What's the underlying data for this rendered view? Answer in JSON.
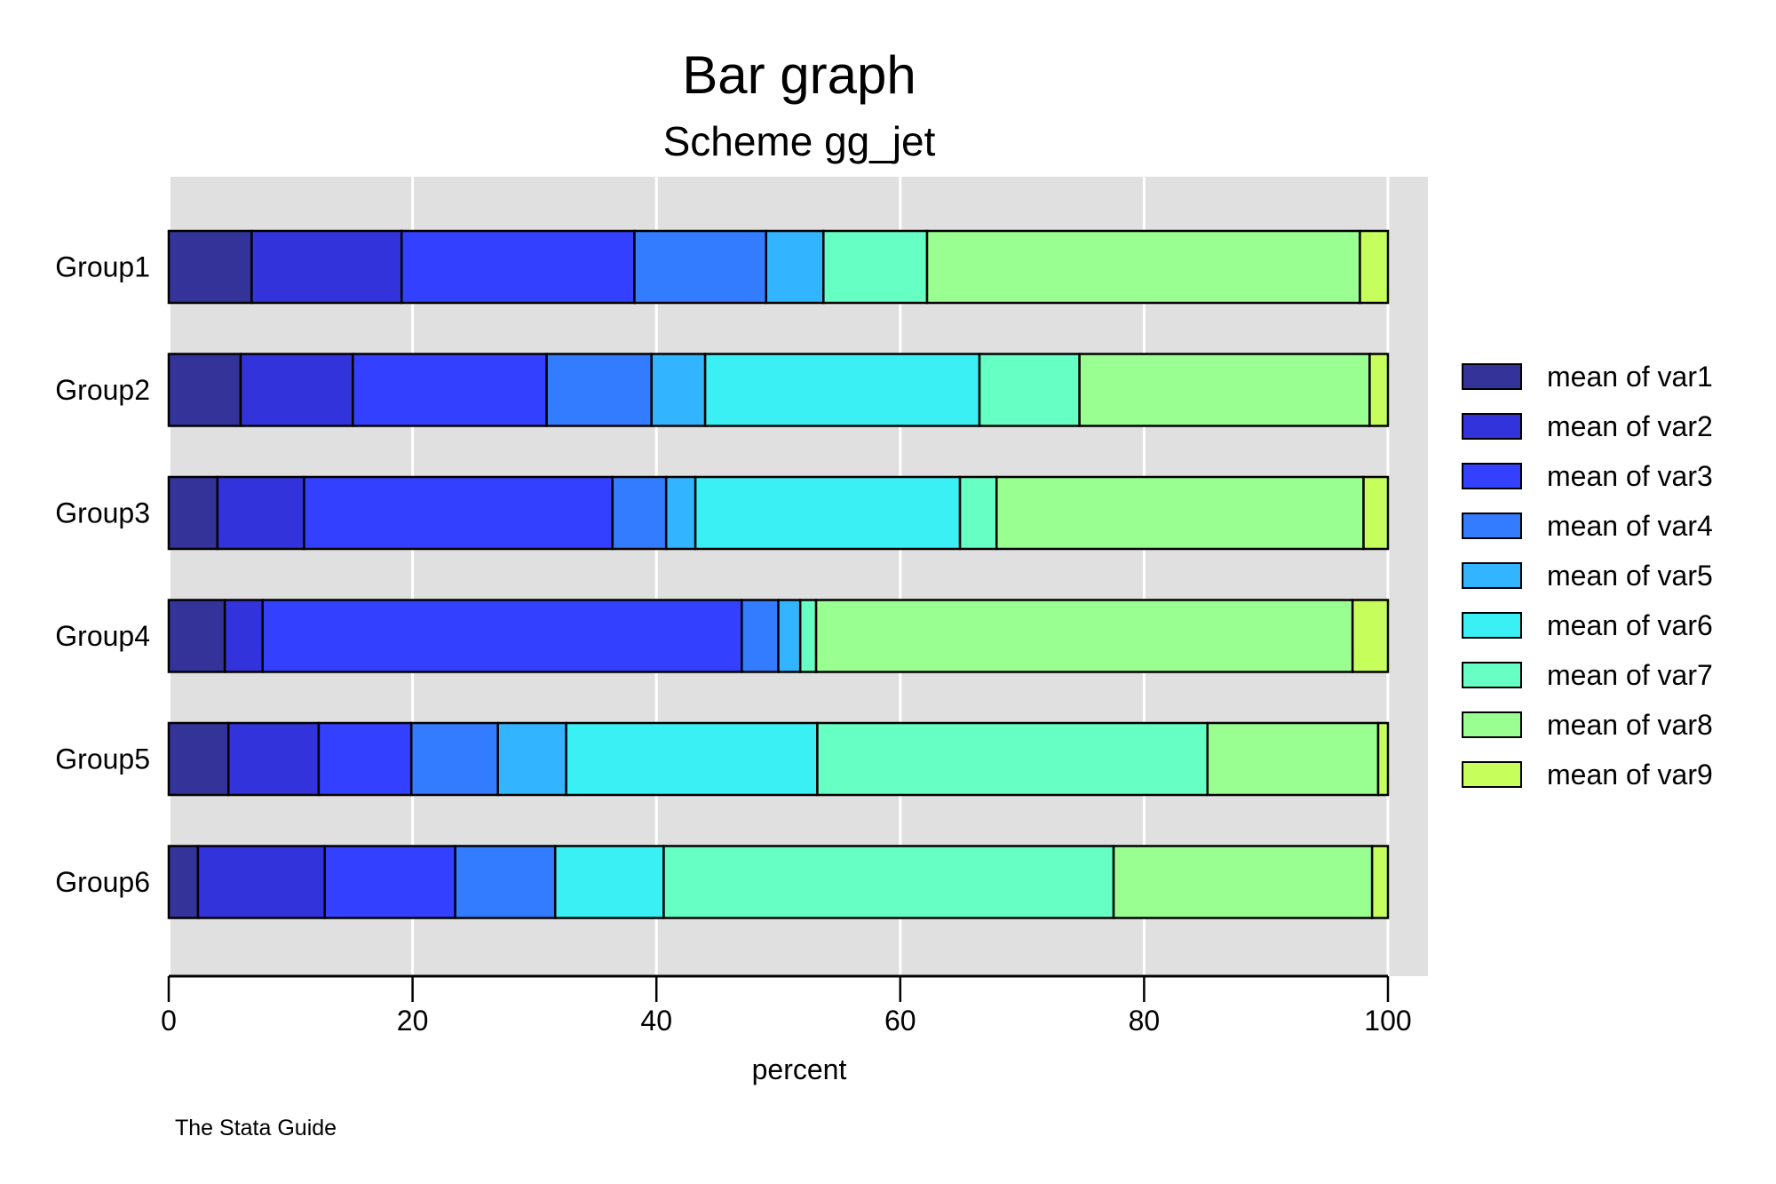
{
  "chart_data": {
    "type": "bar",
    "orientation": "horizontal",
    "stacked": "percent",
    "title": "Bar graph",
    "subtitle": "Scheme gg_jet",
    "xlabel": "percent",
    "ylabel": "",
    "xlim": [
      0,
      100
    ],
    "xticks": [
      0,
      20,
      40,
      60,
      80,
      100
    ],
    "grid": true,
    "legend_position": "right",
    "note": "The Stata Guide",
    "categories": [
      "Group1",
      "Group2",
      "Group3",
      "Group4",
      "Group5",
      "Group6"
    ],
    "series": [
      {
        "name": "mean of var1",
        "color": "#333399",
        "values": [
          6.8,
          5.9,
          4.0,
          4.6,
          4.9,
          2.4
        ]
      },
      {
        "name": "mean of var2",
        "color": "#3333DB",
        "values": [
          12.3,
          9.2,
          7.1,
          3.1,
          7.4,
          10.4
        ]
      },
      {
        "name": "mean of var3",
        "color": "#3340FF",
        "values": [
          19.1,
          15.9,
          25.3,
          39.3,
          7.6,
          10.7
        ]
      },
      {
        "name": "mean of var4",
        "color": "#337CFF",
        "values": [
          10.8,
          8.6,
          4.4,
          3.0,
          7.1,
          8.2
        ]
      },
      {
        "name": "mean of var5",
        "color": "#33B4FF",
        "values": [
          4.7,
          4.4,
          2.4,
          1.8,
          5.6,
          0
        ]
      },
      {
        "name": "mean of var6",
        "color": "#3AF0F5",
        "values": [
          0,
          22.5,
          21.7,
          0,
          20.6,
          8.9
        ]
      },
      {
        "name": "mean of var7",
        "color": "#66FFC4",
        "values": [
          8.5,
          8.2,
          3.0,
          1.3,
          32.0,
          36.9
        ]
      },
      {
        "name": "mean of var8",
        "color": "#99FF91",
        "values": [
          35.5,
          23.8,
          30.1,
          44.0,
          14.0,
          21.2
        ]
      },
      {
        "name": "mean of var9",
        "color": "#C6FF5C",
        "values": [
          2.3,
          1.5,
          2.0,
          2.9,
          0.8,
          1.3
        ]
      }
    ]
  }
}
